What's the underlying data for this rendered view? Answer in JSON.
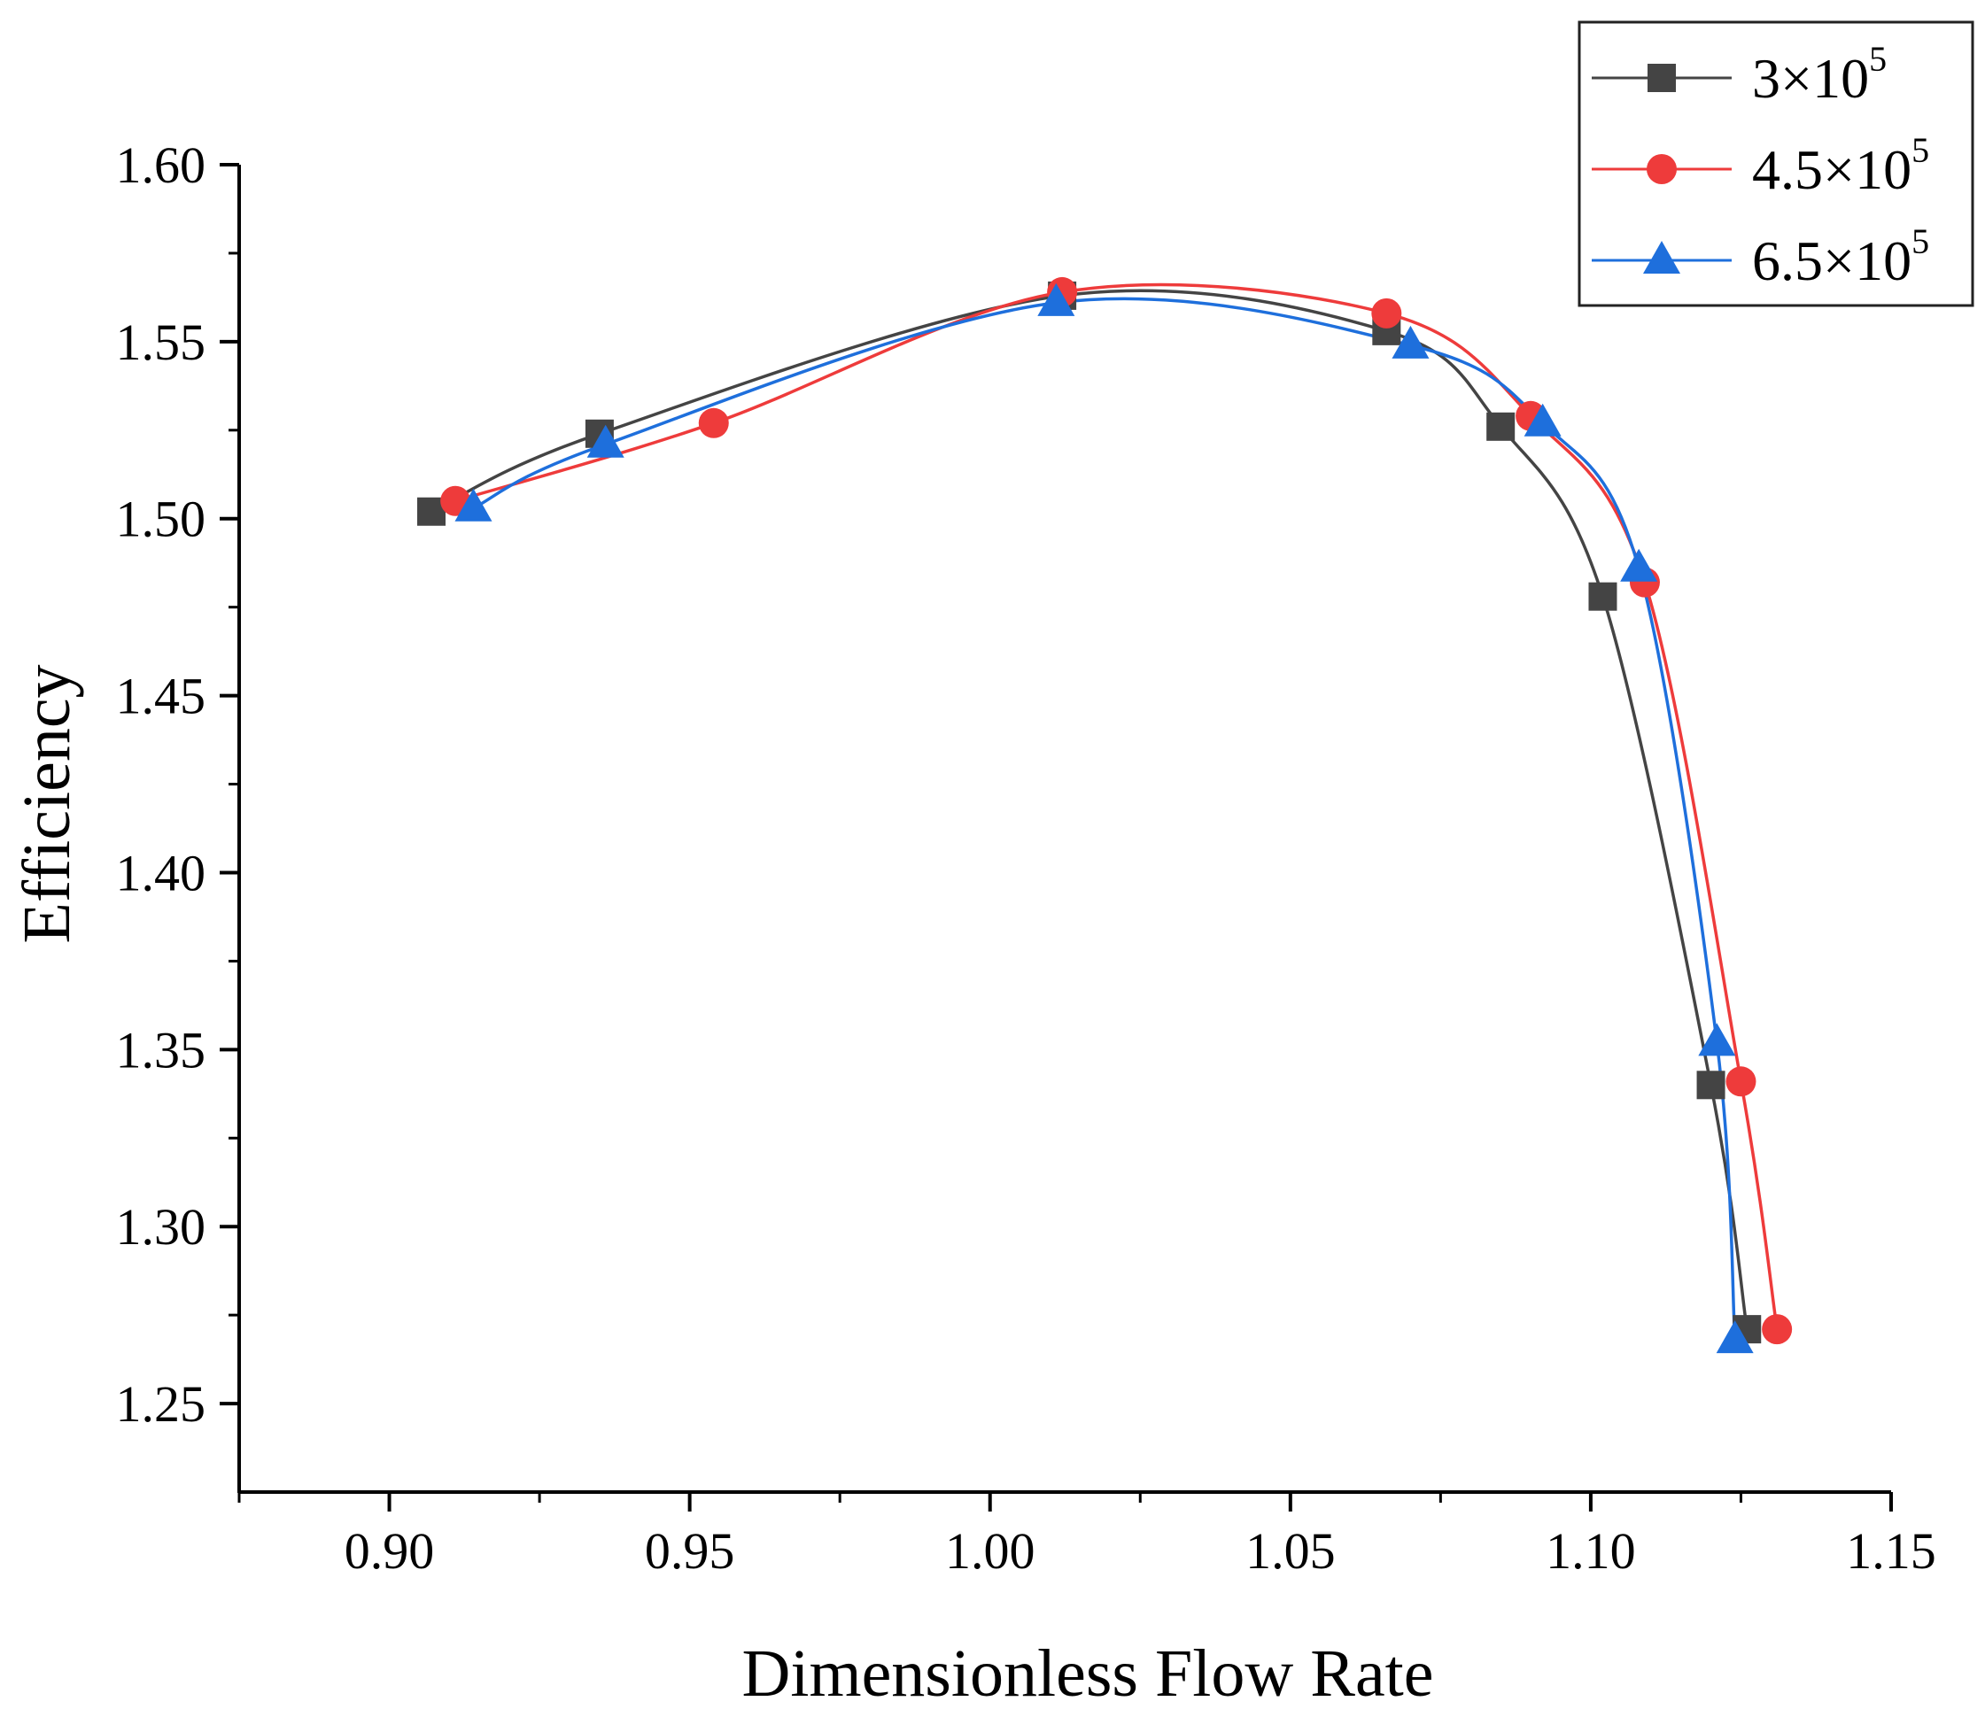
{
  "chart_data": {
    "type": "line",
    "title": "",
    "xlabel": "Dimensionless Flow Rate",
    "ylabel": "Efficiency",
    "xlim": [
      0.875,
      1.15
    ],
    "ylim": [
      1.225,
      1.6
    ],
    "xticks": [
      0.9,
      0.95,
      1.0,
      1.05,
      1.1,
      1.15
    ],
    "xtick_labels": [
      "0.90",
      "0.95",
      "1.00",
      "1.05",
      "1.10",
      "1.15"
    ],
    "yticks": [
      1.25,
      1.3,
      1.35,
      1.4,
      1.45,
      1.5,
      1.55,
      1.6
    ],
    "ytick_labels": [
      "1.25",
      "1.30",
      "1.35",
      "1.40",
      "1.45",
      "1.50",
      "1.55",
      "1.60"
    ],
    "grid": false,
    "legend_position": "top-right",
    "series": [
      {
        "name": "3×10",
        "name_sup": "5",
        "color": "#444444",
        "marker": "square",
        "x": [
          0.907,
          0.935,
          1.012,
          1.066,
          1.085,
          1.102,
          1.12,
          1.126
        ],
        "y": [
          1.502,
          1.524,
          1.563,
          1.553,
          1.526,
          1.478,
          1.34,
          1.271
        ]
      },
      {
        "name": "4.5×10",
        "name_sup": "5",
        "color": "#ee3b3b",
        "marker": "circle",
        "x": [
          0.911,
          0.954,
          1.012,
          1.066,
          1.09,
          1.109,
          1.125,
          1.131
        ],
        "y": [
          1.505,
          1.527,
          1.564,
          1.558,
          1.529,
          1.482,
          1.341,
          1.271
        ]
      },
      {
        "name": "6.5×10",
        "name_sup": "5",
        "color": "#1e6fdc",
        "marker": "triangle",
        "x": [
          0.914,
          0.936,
          1.011,
          1.07,
          1.092,
          1.108,
          1.121,
          1.124
        ],
        "y": [
          1.503,
          1.521,
          1.561,
          1.549,
          1.527,
          1.486,
          1.352,
          1.268
        ]
      }
    ]
  }
}
